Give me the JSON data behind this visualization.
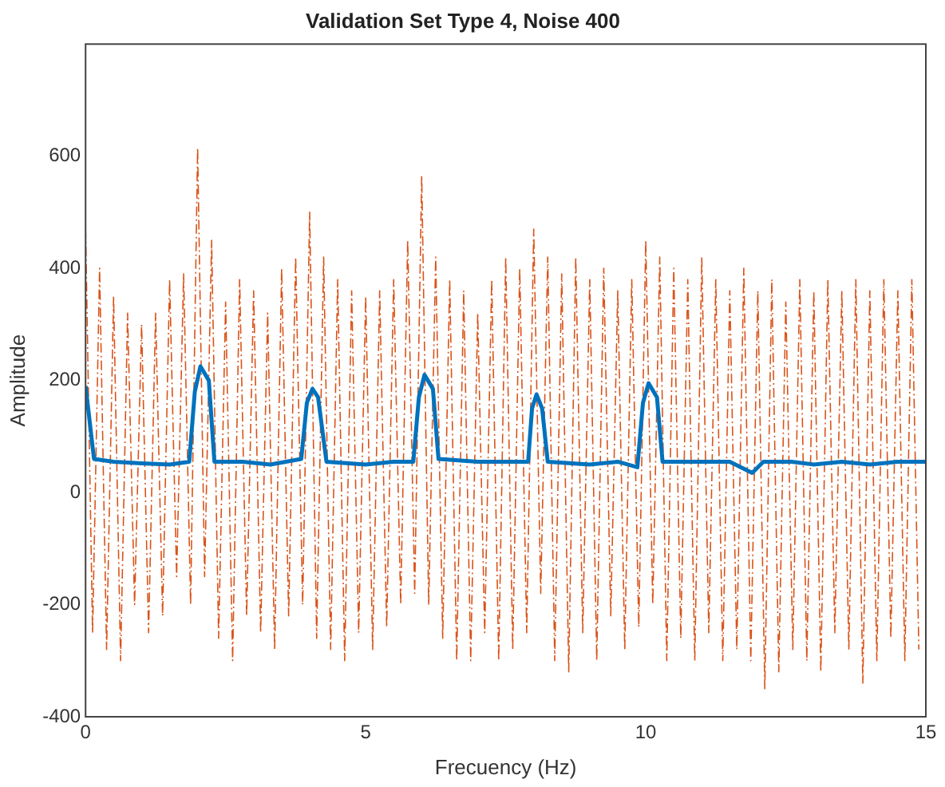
{
  "chart_data": {
    "type": "line",
    "title": "Validation Set Type 4, Noise 400",
    "xlabel": "Frecuency (Hz)",
    "ylabel": "Amplitude",
    "xlim": [
      0,
      15
    ],
    "xticks": [
      0,
      5,
      10,
      15
    ],
    "ylim": [
      -400,
      800
    ],
    "yticks": [
      -400,
      -200,
      0,
      200,
      400,
      600
    ],
    "grid": false,
    "legend": false,
    "marker": "none",
    "series": [
      {
        "color": "#d95319",
        "line_style": "dashed",
        "x": [
          0,
          0.125,
          0.25,
          0.375,
          0.5,
          0.625,
          0.75,
          0.875,
          1,
          1.125,
          1.25,
          1.375,
          1.5,
          1.625,
          1.75,
          1.875,
          2,
          2.125,
          2.25,
          2.375,
          2.5,
          2.625,
          2.75,
          2.875,
          3,
          3.125,
          3.25,
          3.375,
          3.5,
          3.625,
          3.75,
          3.875,
          4,
          4.125,
          4.25,
          4.375,
          4.5,
          4.625,
          4.75,
          4.875,
          5,
          5.125,
          5.25,
          5.375,
          5.5,
          5.625,
          5.75,
          5.875,
          6,
          6.125,
          6.25,
          6.375,
          6.5,
          6.625,
          6.75,
          6.875,
          7,
          7.125,
          7.25,
          7.375,
          7.5,
          7.625,
          7.75,
          7.875,
          8,
          8.125,
          8.25,
          8.375,
          8.5,
          8.625,
          8.75,
          8.875,
          9,
          9.125,
          9.25,
          9.375,
          9.5,
          9.625,
          9.75,
          9.875,
          10,
          10.125,
          10.25,
          10.375,
          10.5,
          10.625,
          10.75,
          10.875,
          11,
          11.125,
          11.25,
          11.375,
          11.5,
          11.625,
          11.75,
          11.875,
          12,
          12.125,
          12.25,
          12.375,
          12.5,
          12.625,
          12.75,
          12.875,
          13,
          13.125,
          13.25,
          13.375,
          13.5,
          13.625,
          13.75,
          13.875,
          14,
          14.125,
          14.25,
          14.375,
          14.5,
          14.625,
          14.75,
          14.875
        ],
        "values": [
          470,
          -250,
          400,
          -280,
          350,
          -300,
          320,
          -200,
          300,
          -250,
          320,
          -220,
          380,
          -150,
          390,
          -200,
          615,
          -150,
          450,
          -260,
          340,
          -300,
          380,
          -220,
          360,
          -250,
          320,
          -280,
          400,
          -220,
          420,
          -200,
          500,
          -260,
          420,
          -280,
          380,
          -300,
          360,
          -250,
          350,
          -280,
          360,
          -240,
          380,
          -200,
          450,
          -180,
          565,
          -200,
          420,
          -260,
          380,
          -300,
          360,
          -300,
          320,
          -250,
          380,
          -300,
          420,
          -280,
          400,
          -250,
          470,
          -180,
          420,
          -300,
          390,
          -320,
          420,
          -250,
          380,
          -300,
          400,
          -220,
          360,
          -280,
          380,
          -240,
          450,
          -200,
          420,
          -300,
          400,
          -260,
          380,
          -300,
          420,
          -250,
          380,
          -300,
          360,
          -280,
          400,
          -300,
          360,
          -350,
          380,
          -320,
          340,
          -280,
          380,
          -300,
          360,
          -320,
          380,
          -250,
          360,
          -280,
          380,
          -340,
          360,
          -300,
          380,
          -260,
          360,
          -300,
          380,
          -280
        ]
      },
      {
        "color": "#0072bd",
        "line_style": "solid",
        "x": [
          0,
          0.15,
          0.5,
          1,
          1.5,
          1.85,
          1.95,
          2.05,
          2.2,
          2.3,
          2.8,
          3.3,
          3.85,
          3.95,
          4.05,
          4.15,
          4.3,
          5,
          5.5,
          5.85,
          5.95,
          6.05,
          6.2,
          6.3,
          7,
          7.5,
          7.9,
          7.97,
          8.05,
          8.15,
          8.25,
          9,
          9.5,
          9.85,
          9.95,
          10.05,
          10.2,
          10.3,
          11,
          11.5,
          11.9,
          12.1,
          12.6,
          13,
          13.5,
          14,
          14.5,
          15
        ],
        "values": [
          190,
          60,
          55,
          52,
          50,
          55,
          180,
          225,
          200,
          55,
          55,
          50,
          60,
          160,
          185,
          170,
          55,
          50,
          55,
          55,
          170,
          210,
          185,
          60,
          55,
          55,
          55,
          150,
          175,
          150,
          55,
          50,
          55,
          45,
          160,
          195,
          170,
          55,
          55,
          55,
          35,
          55,
          55,
          50,
          55,
          50,
          55,
          55
        ]
      }
    ]
  }
}
